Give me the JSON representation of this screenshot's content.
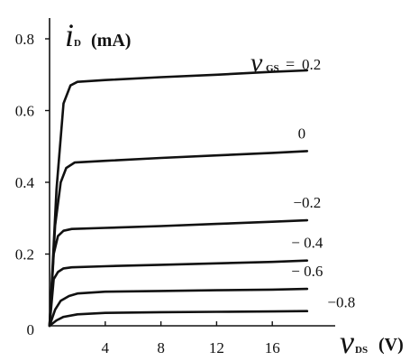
{
  "chart_data": {
    "type": "line",
    "x_label": {
      "symbol": "v",
      "subscript": "DS",
      "unit": "(V)"
    },
    "y_label": {
      "symbol": "i",
      "subscript": "D",
      "unit": "(mA)"
    },
    "parameter_label": {
      "symbol": "v",
      "subscript": "GS",
      "equals": "="
    },
    "xlim": [
      0,
      20
    ],
    "ylim": [
      0,
      0.85
    ],
    "x_ticks": [
      "4",
      "8",
      "12",
      "16"
    ],
    "y_ticks": [
      "0",
      "0.2",
      "0.4",
      "0.6",
      "0.8"
    ],
    "series": [
      {
        "name": "0.2",
        "label": "0.2",
        "x": [
          0,
          0.5,
          1.0,
          1.5,
          2.0,
          4,
          8,
          12,
          16,
          18.5
        ],
        "y": [
          0,
          0.38,
          0.62,
          0.67,
          0.68,
          0.685,
          0.693,
          0.7,
          0.708,
          0.712
        ]
      },
      {
        "name": "0",
        "label": "0",
        "x": [
          0,
          0.4,
          0.8,
          1.2,
          1.8,
          4,
          8,
          12,
          16,
          18.5
        ],
        "y": [
          0,
          0.28,
          0.4,
          0.44,
          0.455,
          0.46,
          0.468,
          0.475,
          0.482,
          0.487
        ]
      },
      {
        "name": "-0.2",
        "label": "−0.2",
        "x": [
          0,
          0.3,
          0.6,
          1.0,
          1.6,
          4,
          8,
          12,
          16,
          18.5
        ],
        "y": [
          0,
          0.2,
          0.25,
          0.265,
          0.27,
          0.273,
          0.278,
          0.284,
          0.29,
          0.294
        ]
      },
      {
        "name": "-0.4",
        "label": "− 0.4",
        "x": [
          0,
          0.3,
          0.6,
          1.0,
          1.6,
          4,
          8,
          12,
          16,
          18.5
        ],
        "y": [
          0,
          0.13,
          0.15,
          0.16,
          0.163,
          0.166,
          0.17,
          0.174,
          0.178,
          0.182
        ]
      },
      {
        "name": "-0.6",
        "label": "− 0.6",
        "x": [
          0,
          0.4,
          0.8,
          1.4,
          2.0,
          4,
          8,
          12,
          16,
          18.5
        ],
        "y": [
          0,
          0.045,
          0.07,
          0.083,
          0.09,
          0.095,
          0.097,
          0.099,
          0.101,
          0.103
        ]
      },
      {
        "name": "-0.8",
        "label": "−0.8",
        "x": [
          0,
          0.5,
          1.0,
          2.0,
          4,
          8,
          12,
          16,
          18.5
        ],
        "y": [
          0,
          0.015,
          0.025,
          0.032,
          0.036,
          0.038,
          0.039,
          0.04,
          0.041
        ]
      }
    ]
  }
}
